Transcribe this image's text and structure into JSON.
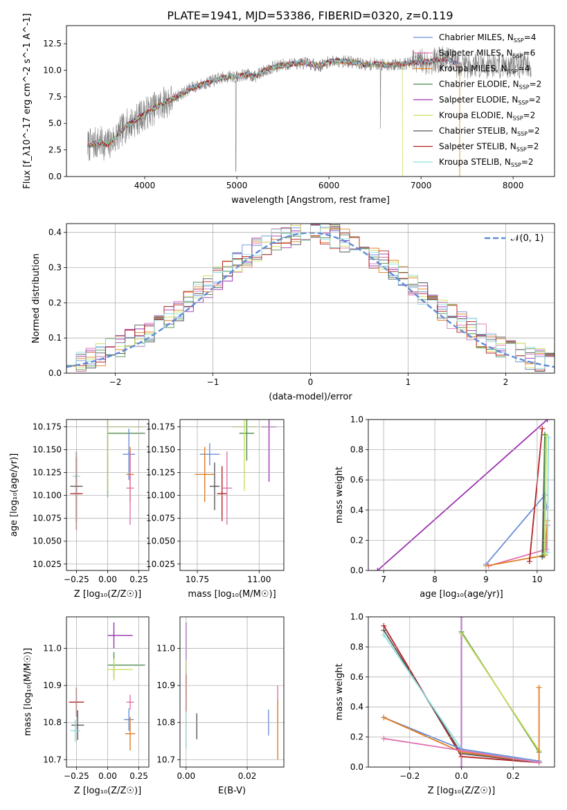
{
  "chart_data": [
    {
      "type": "line",
      "title": "PLATE=1941, MJD=53386, FIBERID=0320, z=0.119",
      "xlabel": "wavelength [Angstrom, rest frame]",
      "ylabel": "Flux [f_λ10^-17 erg cm^-2 s^-1 A^-1]",
      "xlim": [
        3150,
        8450
      ],
      "ylim": [
        0,
        14.2
      ],
      "xticks": [
        "4000",
        "5000",
        "6000",
        "7000",
        "8000"
      ],
      "yticks": [
        "0.0",
        "2.5",
        "5.0",
        "7.5",
        "10.0",
        "12.5"
      ],
      "observed_range": [
        3380,
        8200
      ],
      "legend": [
        {
          "label": "Chabrier MILES, N",
          "sub": "SSP",
          "suffix": "=4",
          "color": "#6a8ed8"
        },
        {
          "label": "Salpeter MILES, N",
          "sub": "SSP",
          "suffix": "=6",
          "color": "#e06fae"
        },
        {
          "label": "Kroupa MILES, N",
          "sub": "SSP",
          "suffix": "=4",
          "color": "#e07b1e"
        },
        {
          "label": "Chabrier ELODIE, N",
          "sub": "SSP",
          "suffix": "=2",
          "color": "#4b8a4b"
        },
        {
          "label": "Salpeter ELODIE, N",
          "sub": "SSP",
          "suffix": "=2",
          "color": "#9b2fae"
        },
        {
          "label": "Kroupa ELODIE, N",
          "sub": "SSP",
          "suffix": "=2",
          "color": "#c9e05a"
        },
        {
          "label": "Chabrier STELIB, N",
          "sub": "SSP",
          "suffix": "=2",
          "color": "#555555"
        },
        {
          "label": "Salpeter STELIB, N",
          "sub": "SSP",
          "suffix": "=2",
          "color": "#b41e1e"
        },
        {
          "label": "Kroupa STELIB, N",
          "sub": "SSP",
          "suffix": "=2",
          "color": "#8edde0"
        }
      ],
      "model_points": [
        [
          3380,
          2.9
        ],
        [
          3500,
          3.2
        ],
        [
          3600,
          3.0
        ],
        [
          3700,
          3.8
        ],
        [
          3800,
          4.8
        ],
        [
          3900,
          5.3
        ],
        [
          4000,
          5.9
        ],
        [
          4100,
          6.4
        ],
        [
          4200,
          6.9
        ],
        [
          4300,
          7.3
        ],
        [
          4400,
          7.8
        ],
        [
          4500,
          8.3
        ],
        [
          4600,
          8.6
        ],
        [
          4700,
          8.9
        ],
        [
          4800,
          9.2
        ],
        [
          4900,
          9.4
        ],
        [
          5000,
          9.4
        ],
        [
          5100,
          9.6
        ],
        [
          5200,
          9.4
        ],
        [
          5300,
          10.0
        ],
        [
          5400,
          10.3
        ],
        [
          5500,
          10.5
        ],
        [
          5600,
          10.6
        ],
        [
          5700,
          10.7
        ],
        [
          5800,
          10.6
        ],
        [
          5900,
          10.4
        ],
        [
          6000,
          10.8
        ],
        [
          6100,
          10.9
        ],
        [
          6200,
          10.8
        ],
        [
          6300,
          10.7
        ],
        [
          6400,
          10.5
        ],
        [
          6500,
          10.6
        ],
        [
          6600,
          10.5
        ],
        [
          6700,
          10.5
        ],
        [
          6800,
          10.6
        ],
        [
          6900,
          10.7
        ],
        [
          7000,
          10.8
        ],
        [
          7100,
          10.8
        ],
        [
          7200,
          11.0
        ],
        [
          7300,
          11.1
        ],
        [
          7400,
          10.5
        ]
      ]
    },
    {
      "type": "histogram",
      "xlabel": "(data-model)/error",
      "ylabel": "Normed distribution",
      "xlim": [
        -2.5,
        2.5
      ],
      "ylim": [
        0,
        0.425
      ],
      "xticks": [
        "−2",
        "−1",
        "0",
        "1",
        "2"
      ],
      "yticks": [
        "0.0",
        "0.1",
        "0.2",
        "0.3",
        "0.4"
      ],
      "bin_width": 0.1,
      "legend": "𝒩(0, 1)",
      "gaussian_color": "#5b8bd9"
    },
    {
      "type": "errorbar",
      "xlabel": "Z [log₁₀(Z/Z☉)]",
      "ylabel": "age  [log₁₀(age/yr)]",
      "xlim": [
        -0.33,
        0.33
      ],
      "ylim": [
        10.018,
        10.183
      ],
      "xticks": [
        "−0.25",
        "0.00",
        "0.25"
      ],
      "yticks": [
        "10.025",
        "10.050",
        "10.075",
        "10.100",
        "10.125",
        "10.150",
        "10.175"
      ],
      "points": [
        {
          "x": 0.0,
          "y": 10.168,
          "xerr": [
            0.0,
            0.3
          ],
          "yerr": 0.07,
          "color": "#4b8a4b"
        },
        {
          "x": 0.0,
          "y": 10.175,
          "xerr": [
            0.0,
            0.3
          ],
          "yerr": 0.07,
          "color": "#c9e05a"
        },
        {
          "x": 0.17,
          "y": 10.145,
          "xerr": [
            0.05,
            0.05
          ],
          "yerr": 0.028,
          "color": "#6a8ed8"
        },
        {
          "x": 0.18,
          "y": 10.123,
          "xerr": [
            0.03,
            0.03
          ],
          "yerr": 0.03,
          "color": "#e07b1e"
        },
        {
          "x": 0.18,
          "y": 10.108,
          "xerr": [
            0.03,
            0.03
          ],
          "yerr": 0.04,
          "color": "#e06fae"
        },
        {
          "x": -0.25,
          "y": 10.121,
          "xerr": [
            0.03,
            0.03
          ],
          "yerr": 0.027,
          "color": "#8edde0"
        },
        {
          "x": -0.25,
          "y": 10.11,
          "xerr": [
            0.05,
            0.05
          ],
          "yerr": 0.038,
          "color": "#555555"
        },
        {
          "x": -0.25,
          "y": 10.102,
          "xerr": [
            0.05,
            0.05
          ],
          "yerr": 0.04,
          "color": "#b41e1e"
        }
      ]
    },
    {
      "type": "errorbar",
      "xlabel": "mass [log₁₀(M/M☉)]",
      "xlim": [
        10.68,
        11.1
      ],
      "ylim": [
        10.018,
        10.183
      ],
      "xticks": [
        "10.75",
        "11.00"
      ],
      "yticks": [
        "10.025",
        "10.050",
        "10.075",
        "10.100",
        "10.125",
        "10.150",
        "10.175"
      ],
      "points": [
        {
          "x": 10.8,
          "y": 10.145,
          "xerr": 0.04,
          "yerr": 0.012,
          "color": "#6a8ed8"
        },
        {
          "x": 10.78,
          "y": 10.123,
          "xerr": 0.04,
          "yerr": 0.03,
          "color": "#e07b1e"
        },
        {
          "x": 10.82,
          "y": 10.11,
          "xerr": 0.02,
          "yerr": 0.026,
          "color": "#555555"
        },
        {
          "x": 10.85,
          "y": 10.102,
          "xerr": 0.02,
          "yerr": 0.03,
          "color": "#b41e1e"
        },
        {
          "x": 10.87,
          "y": 10.108,
          "xerr": 0.02,
          "yerr": 0.04,
          "color": "#e06fae"
        },
        {
          "x": 10.95,
          "y": 10.168,
          "xerr": 0.03,
          "yerr": 0.03,
          "color": "#4b8a4b"
        },
        {
          "x": 10.94,
          "y": 10.175,
          "xerr": 0.05,
          "yerr": 0.07,
          "color": "#c9e05a"
        },
        {
          "x": 11.04,
          "y": 10.175,
          "xerr": 0.03,
          "yerr": 0.06,
          "color": "#9b2fae"
        }
      ]
    },
    {
      "type": "line",
      "xlabel": "age  [log₁₀(age/yr)]",
      "ylabel": "mass weight",
      "xlim": [
        6.7,
        10.34
      ],
      "ylim": [
        0,
        1.0
      ],
      "xticks": [
        "7",
        "8",
        "9",
        "10"
      ],
      "yticks": [
        "0.0",
        "0.2",
        "0.4",
        "0.6",
        "0.8",
        "1.0"
      ],
      "series": [
        {
          "color": "#9b2fae",
          "points": [
            [
              6.88,
              0.0
            ],
            [
              10.2,
              1.0
            ]
          ]
        },
        {
          "color": "#6a8ed8",
          "points": [
            [
              9.0,
              0.04
            ],
            [
              10.15,
              0.5
            ],
            [
              10.18,
              0.42
            ]
          ]
        },
        {
          "color": "#e06fae",
          "points": [
            [
              9.05,
              0.03
            ],
            [
              10.18,
              0.14
            ],
            [
              10.2,
              0.3
            ]
          ]
        },
        {
          "color": "#e07b1e",
          "points": [
            [
              9.0,
              0.03
            ],
            [
              10.15,
              0.1
            ],
            [
              10.2,
              0.33
            ]
          ]
        },
        {
          "color": "#b41e1e",
          "points": [
            [
              9.85,
              0.06
            ],
            [
              10.1,
              0.94
            ]
          ]
        },
        {
          "color": "#555555",
          "points": [
            [
              10.1,
              0.09
            ],
            [
              10.15,
              0.9
            ]
          ]
        },
        {
          "color": "#4b8a4b",
          "points": [
            [
              10.12,
              0.1
            ],
            [
              10.15,
              0.9
            ]
          ]
        },
        {
          "color": "#c9e05a",
          "points": [
            [
              10.15,
              0.11
            ],
            [
              10.18,
              0.89
            ]
          ]
        },
        {
          "color": "#8edde0",
          "points": [
            [
              10.2,
              0.12
            ],
            [
              10.22,
              0.88
            ]
          ]
        }
      ]
    },
    {
      "type": "errorbar",
      "xlabel": "Z [log₁₀(Z/Z☉)]",
      "ylabel": "mass [log₁₀(M/M☉)]",
      "xlim": [
        -0.33,
        0.33
      ],
      "ylim": [
        10.68,
        11.085
      ],
      "xticks": [
        "−0.25",
        "0.00",
        "0.25"
      ],
      "yticks": [
        "10.7",
        "10.8",
        "10.9",
        "11.0"
      ],
      "points": [
        {
          "x": 0.05,
          "y": 11.035,
          "xerr": [
            0.05,
            0.15
          ],
          "yerr": 0.035,
          "color": "#9b2fae"
        },
        {
          "x": 0.05,
          "y": 10.955,
          "xerr": [
            0.05,
            0.25
          ],
          "yerr": 0.035,
          "color": "#4b8a4b"
        },
        {
          "x": 0.05,
          "y": 10.943,
          "xerr": [
            0.05,
            0.15
          ],
          "yerr": 0.03,
          "color": "#c9e05a"
        },
        {
          "x": 0.18,
          "y": 10.855,
          "xerr": 0.03,
          "yerr": 0.02,
          "color": "#e06fae"
        },
        {
          "x": 0.17,
          "y": 10.808,
          "xerr": 0.04,
          "yerr": 0.03,
          "color": "#6a8ed8"
        },
        {
          "x": 0.18,
          "y": 10.77,
          "xerr": 0.04,
          "yerr": 0.045,
          "color": "#e07b1e"
        },
        {
          "x": -0.25,
          "y": 10.855,
          "xerr": 0.06,
          "yerr": 0.04,
          "color": "#b41e1e"
        },
        {
          "x": -0.24,
          "y": 10.793,
          "xerr": 0.05,
          "yerr": 0.04,
          "color": "#555555"
        },
        {
          "x": -0.26,
          "y": 10.778,
          "xerr": 0.04,
          "yerr": 0.03,
          "color": "#8edde0"
        }
      ]
    },
    {
      "type": "errorbar",
      "xlabel": "E(B-V)",
      "xlim": [
        -0.002,
        0.032
      ],
      "ylim": [
        10.68,
        11.085
      ],
      "xticks": [
        "0.00",
        "0.02"
      ],
      "yticks": [
        "10.7",
        "10.8",
        "10.9",
        "11.0"
      ],
      "points": [
        {
          "x": 0.0,
          "y": 11.0,
          "xerr": 0.0,
          "yerr": 0.07,
          "color": "#9b2fae"
        },
        {
          "x": 0.0,
          "y": 10.92,
          "xerr": 0.0,
          "yerr": 0.05,
          "color": "#c9e05a"
        },
        {
          "x": 0.0,
          "y": 10.88,
          "xerr": 0.0,
          "yerr": 0.05,
          "color": "#b41e1e"
        },
        {
          "x": 0.0,
          "y": 10.78,
          "xerr": 0.0,
          "yerr": 0.05,
          "color": "#8edde0"
        },
        {
          "x": 0.0035,
          "y": 10.79,
          "xerr": 0.0,
          "yerr": 0.035,
          "color": "#555555"
        },
        {
          "x": 0.027,
          "y": 10.8,
          "xerr": 0.0,
          "yerr": 0.035,
          "color": "#6a8ed8"
        },
        {
          "x": 0.03,
          "y": 10.85,
          "xerr": 0.0,
          "yerr": 0.05,
          "color": "#e06fae"
        },
        {
          "x": 0.03,
          "y": 10.78,
          "xerr": 0.0,
          "yerr": 0.08,
          "color": "#e07b1e"
        }
      ]
    },
    {
      "type": "line",
      "xlabel": "Z [log₁₀(Z/Z☉)]",
      "ylabel": "mass weight",
      "xlim": [
        -0.36,
        0.36
      ],
      "ylim": [
        0,
        1.0
      ],
      "xticks": [
        "−0.2",
        "0.0",
        "0.2"
      ],
      "yticks": [
        "0.0",
        "0.2",
        "0.4",
        "0.6",
        "0.8",
        "1.0"
      ],
      "series": [
        {
          "color": "#9b2fae",
          "points": [
            [
              0.0,
              0.0
            ],
            [
              0.0,
              1.0
            ]
          ]
        },
        {
          "color": "#b41e1e",
          "points": [
            [
              -0.3,
              0.94
            ],
            [
              0.0,
              0.07
            ],
            [
              0.3,
              0.03
            ]
          ]
        },
        {
          "color": "#555555",
          "points": [
            [
              -0.3,
              0.91
            ],
            [
              0.0,
              0.09
            ],
            [
              0.3,
              0.03
            ]
          ]
        },
        {
          "color": "#8edde0",
          "points": [
            [
              -0.3,
              0.88
            ],
            [
              0.0,
              0.12
            ],
            [
              0.3,
              0.03
            ]
          ]
        },
        {
          "color": "#4b8a4b",
          "points": [
            [
              0.0,
              0.9
            ],
            [
              0.3,
              0.1
            ]
          ]
        },
        {
          "color": "#c9e05a",
          "points": [
            [
              0.0,
              0.89
            ],
            [
              0.3,
              0.11
            ]
          ]
        },
        {
          "color": "#6a8ed8",
          "points": [
            [
              -0.3,
              0.33
            ],
            [
              0.0,
              0.12
            ],
            [
              0.3,
              0.04
            ]
          ]
        },
        {
          "color": "#e07b1e",
          "points": [
            [
              -0.3,
              0.33
            ],
            [
              0.0,
              0.1
            ],
            [
              0.3,
              0.03
            ],
            [
              0.3,
              0.53
            ]
          ]
        },
        {
          "color": "#e06fae",
          "points": [
            [
              -0.3,
              0.19
            ],
            [
              0.0,
              0.11
            ],
            [
              0.3,
              0.03
            ]
          ]
        }
      ]
    }
  ]
}
